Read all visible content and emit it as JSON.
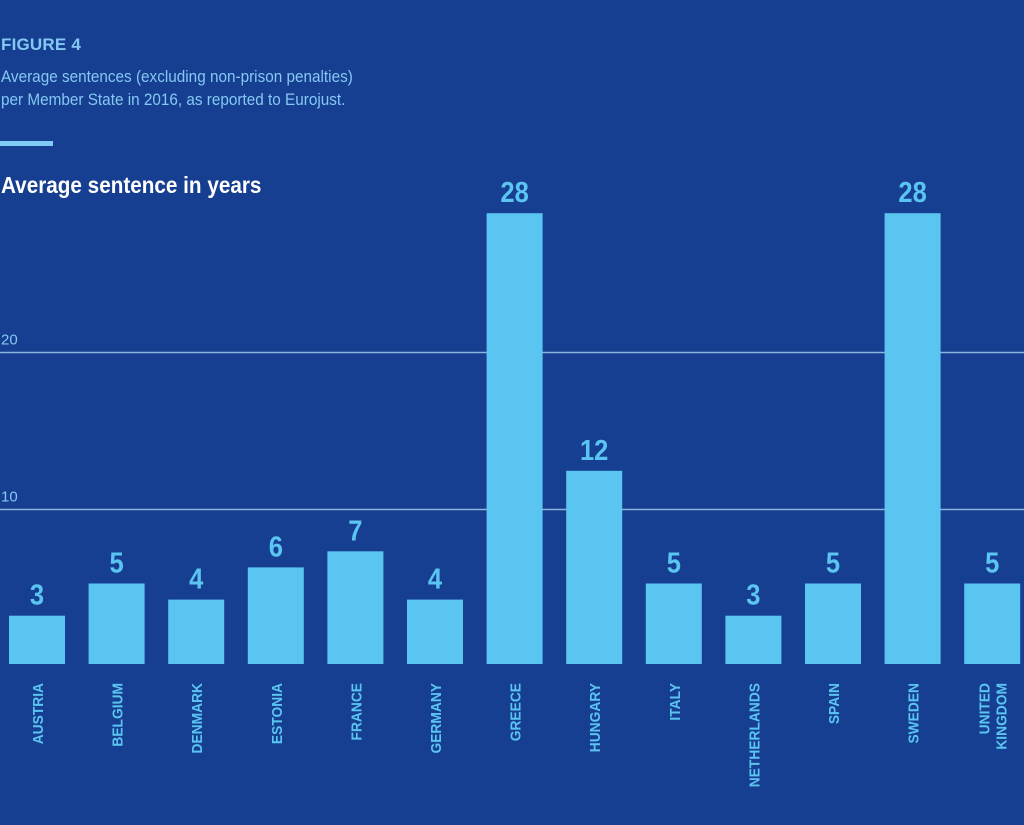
{
  "header": {
    "figure_label": "FIGURE 4",
    "subtitle_line1": "Average sentences (excluding non-prison penalties)",
    "subtitle_line2": "per Member State in 2016, as reported to Eurojust."
  },
  "colors": {
    "background": "#173f91",
    "bar": "#5bc5f2",
    "gridline": "#8ab4e0",
    "accent": "#7fcbf4",
    "title": "#ffffff"
  },
  "chart_data": {
    "type": "bar",
    "title": "Average sentence in years",
    "xlabel": "",
    "ylabel": "Average sentence in years",
    "ylim": [
      0,
      28
    ],
    "grid": true,
    "yticks": [
      10,
      20
    ],
    "categories": [
      "AUSTRIA",
      "BELGIUM",
      "DENMARK",
      "ESTONIA",
      "FRANCE",
      "GERMANY",
      "GREECE",
      "HUNGARY",
      "ITALY",
      "NETHERLANDS",
      "SPAIN",
      "SWEDEN",
      "UNITED KINGDOM"
    ],
    "category_lines": [
      [
        "AUSTRIA"
      ],
      [
        "BELGIUM"
      ],
      [
        "DENMARK"
      ],
      [
        "ESTONIA"
      ],
      [
        "FRANCE"
      ],
      [
        "GERMANY"
      ],
      [
        "GREECE"
      ],
      [
        "HUNGARY"
      ],
      [
        "ITALY"
      ],
      [
        "NETHERLANDS"
      ],
      [
        "SPAIN"
      ],
      [
        "SWEDEN"
      ],
      [
        "UNITED",
        "KINGDOM"
      ]
    ],
    "values": [
      3,
      5,
      4,
      6,
      7,
      4,
      28,
      12,
      5,
      3,
      5,
      28,
      5
    ],
    "value_labels": [
      "3",
      "5",
      "4",
      "6",
      "7",
      "4",
      "28",
      "12",
      "5",
      "3",
      "5",
      "28",
      "5"
    ]
  }
}
